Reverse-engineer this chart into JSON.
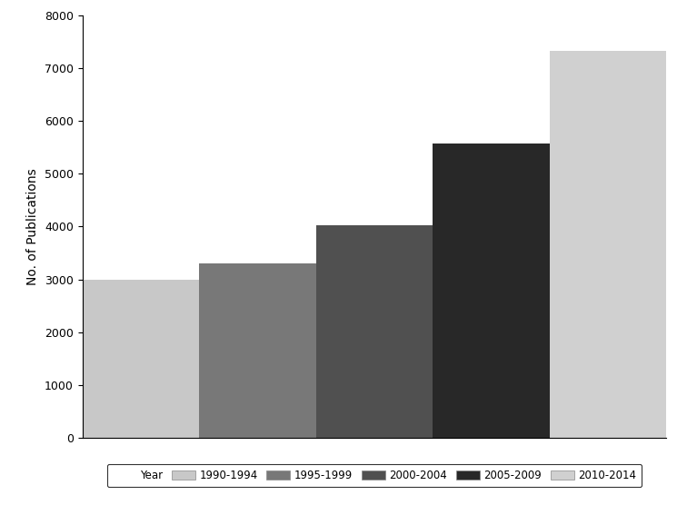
{
  "categories": [
    "1990-1994",
    "1995-1999",
    "2000-2004",
    "2005-2009",
    "2010-2014"
  ],
  "values": [
    3000,
    3300,
    4030,
    5580,
    7330
  ],
  "bar_colors": [
    "#c8c8c8",
    "#787878",
    "#505050",
    "#282828",
    "#d0d0d0"
  ],
  "ylabel": "No. of Publications",
  "ylim": [
    0,
    8000
  ],
  "yticks": [
    0,
    1000,
    2000,
    3000,
    4000,
    5000,
    6000,
    7000,
    8000
  ],
  "legend_label": "Year",
  "background_color": "#ffffff",
  "legend_colors": [
    "#c8c8c8",
    "#787878",
    "#505050",
    "#282828",
    "#d0d0d0"
  ],
  "figsize": [
    7.56,
    5.67
  ],
  "dpi": 100
}
